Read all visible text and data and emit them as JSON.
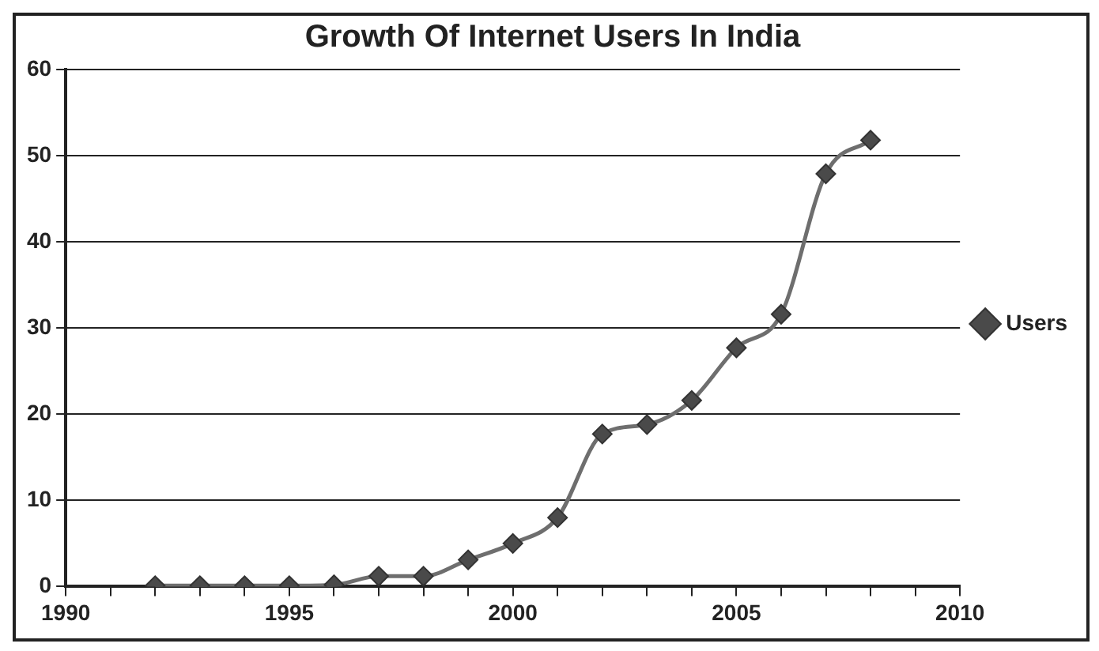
{
  "chart_data": {
    "type": "line",
    "title": "Growth Of Internet Users In India",
    "x": [
      1992,
      1993,
      1994,
      1995,
      1996,
      1997,
      1998,
      1999,
      2000,
      2001,
      2002,
      2003,
      2004,
      2005,
      2006,
      2007,
      2008
    ],
    "series": [
      {
        "name": "Users",
        "color": "#6e6e6e",
        "values": [
          0.1,
          0.1,
          0.1,
          0.1,
          0.2,
          1.2,
          1.2,
          3.1,
          5.0,
          8.0,
          17.7,
          18.8,
          21.6,
          27.7,
          31.6,
          47.9,
          51.8
        ]
      }
    ],
    "xlim": [
      1990,
      2010
    ],
    "xticks": [
      1990,
      {
        "value": 1991,
        "label": null
      },
      {
        "value": 1992,
        "label": null
      },
      {
        "value": 1993,
        "label": null
      },
      {
        "value": 1994,
        "label": null
      },
      1995,
      {
        "value": 1996,
        "label": null
      },
      {
        "value": 1997,
        "label": null
      },
      {
        "value": 1998,
        "label": null
      },
      {
        "value": 1999,
        "label": null
      },
      2000,
      {
        "value": 2001,
        "label": null
      },
      {
        "value": 2002,
        "label": null
      },
      {
        "value": 2003,
        "label": null
      },
      {
        "value": 2004,
        "label": null
      },
      2005,
      {
        "value": 2006,
        "label": null
      },
      {
        "value": 2007,
        "label": null
      },
      {
        "value": 2008,
        "label": null
      },
      {
        "value": 2009,
        "label": null
      },
      2010
    ],
    "ylim": [
      0,
      60
    ],
    "yticks": [
      0,
      10,
      20,
      30,
      40,
      50,
      60
    ],
    "grid": "y",
    "legend": "right",
    "marker": "diamond",
    "line_style": "solid"
  }
}
